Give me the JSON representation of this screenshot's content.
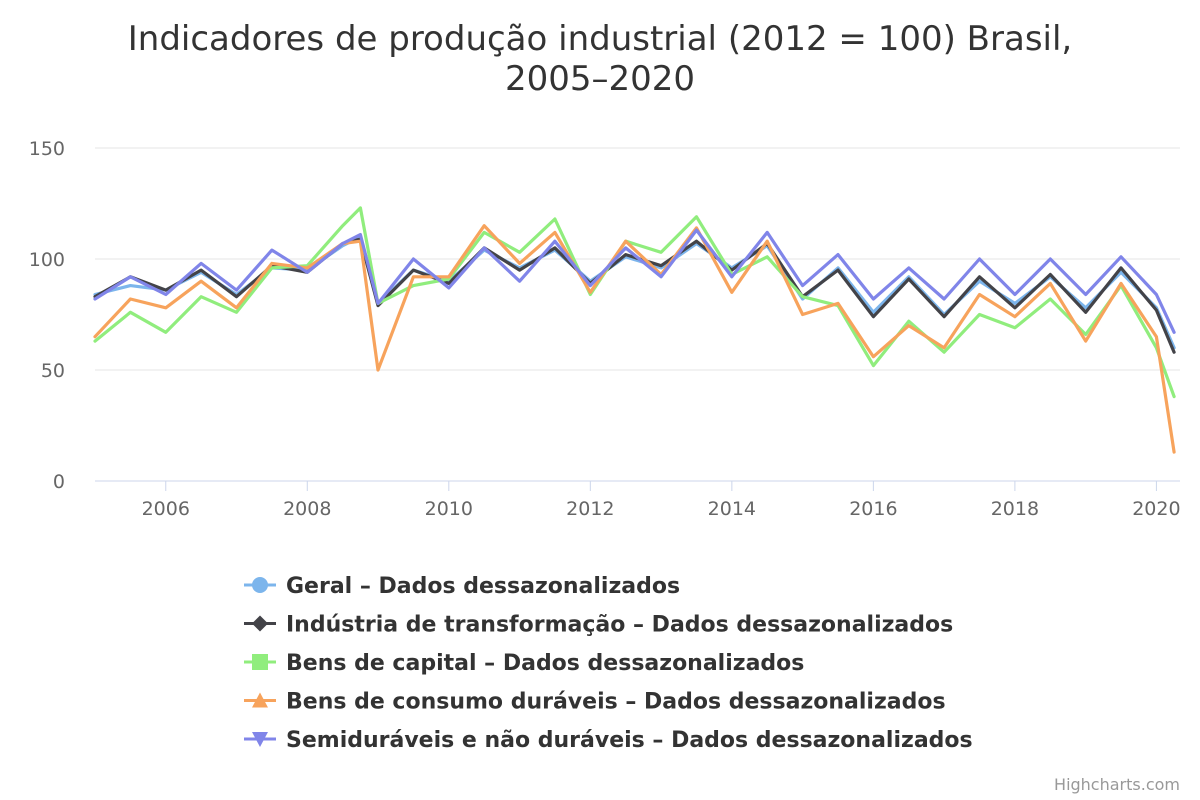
{
  "credits": "Highcharts.com",
  "colors": {
    "geral": "#7cb5ec",
    "transformacao": "#434348",
    "capital": "#90ed7d",
    "duraveis": "#f7a35c",
    "semiduraveis": "#8085e9"
  },
  "chart_data": {
    "type": "line",
    "title": "Indicadores de produção industrial (2012 = 100) Brasil,",
    "title_line2": "2005–2020",
    "xlabel": "",
    "ylabel": "",
    "x_ticks": [
      "2006",
      "2008",
      "2010",
      "2012",
      "2014",
      "2016",
      "2018",
      "2020"
    ],
    "y_ticks": [
      "0",
      "50",
      "100",
      "150"
    ],
    "ylim": [
      0,
      150
    ],
    "xlim": [
      "2005-01",
      "2020-05"
    ],
    "grid": true,
    "legend_position": "bottom",
    "x": [
      "2005-01",
      "2005-07",
      "2006-01",
      "2006-07",
      "2007-01",
      "2007-07",
      "2008-01",
      "2008-07",
      "2008-10",
      "2009-01",
      "2009-07",
      "2010-01",
      "2010-07",
      "2011-01",
      "2011-07",
      "2012-01",
      "2012-07",
      "2013-01",
      "2013-07",
      "2014-01",
      "2014-07",
      "2015-01",
      "2015-07",
      "2016-01",
      "2016-07",
      "2017-01",
      "2017-07",
      "2018-01",
      "2018-07",
      "2019-01",
      "2019-07",
      "2020-01",
      "2020-04"
    ],
    "series": [
      {
        "name": "Geral – Dados dessazonalizados",
        "color_key": "geral",
        "marker": "circle",
        "values": [
          84,
          88,
          86,
          94,
          84,
          96,
          95,
          106,
          110,
          80,
          95,
          90,
          104,
          96,
          104,
          90,
          101,
          96,
          107,
          96,
          106,
          82,
          96,
          76,
          92,
          75,
          90,
          80,
          92,
          78,
          94,
          78,
          60
        ]
      },
      {
        "name": "Indústria de transformação – Dados dessazonalizados",
        "color_key": "transformacao",
        "marker": "diamond",
        "values": [
          83,
          92,
          86,
          95,
          83,
          97,
          94,
          107,
          109,
          79,
          95,
          89,
          105,
          95,
          105,
          89,
          102,
          97,
          108,
          95,
          107,
          83,
          95,
          74,
          91,
          74,
          92,
          78,
          93,
          76,
          96,
          77,
          58
        ]
      },
      {
        "name": "Bens de capital – Dados dessazonalizados",
        "color_key": "capital",
        "marker": "square",
        "values": [
          63,
          76,
          67,
          83,
          76,
          96,
          97,
          115,
          123,
          80,
          88,
          91,
          112,
          103,
          118,
          84,
          108,
          103,
          119,
          93,
          101,
          83,
          79,
          52,
          72,
          58,
          75,
          69,
          82,
          66,
          88,
          60,
          38
        ]
      },
      {
        "name": "Bens de consumo duráveis – Dados dessazonalizados",
        "color_key": "duraveis",
        "marker": "triangle",
        "values": [
          65,
          82,
          78,
          90,
          78,
          98,
          96,
          107,
          108,
          50,
          92,
          92,
          115,
          98,
          112,
          85,
          108,
          93,
          114,
          85,
          108,
          75,
          80,
          56,
          70,
          60,
          84,
          74,
          89,
          63,
          89,
          65,
          13
        ]
      },
      {
        "name": "Semiduráveis e não duráveis – Dados dessazonalizados",
        "color_key": "semiduraveis",
        "marker": "triangle-down",
        "values": [
          82,
          92,
          84,
          98,
          86,
          104,
          94,
          107,
          111,
          80,
          100,
          87,
          105,
          90,
          108,
          88,
          105,
          92,
          113,
          92,
          112,
          88,
          102,
          82,
          96,
          82,
          100,
          84,
          100,
          84,
          101,
          84,
          67
        ]
      }
    ]
  }
}
